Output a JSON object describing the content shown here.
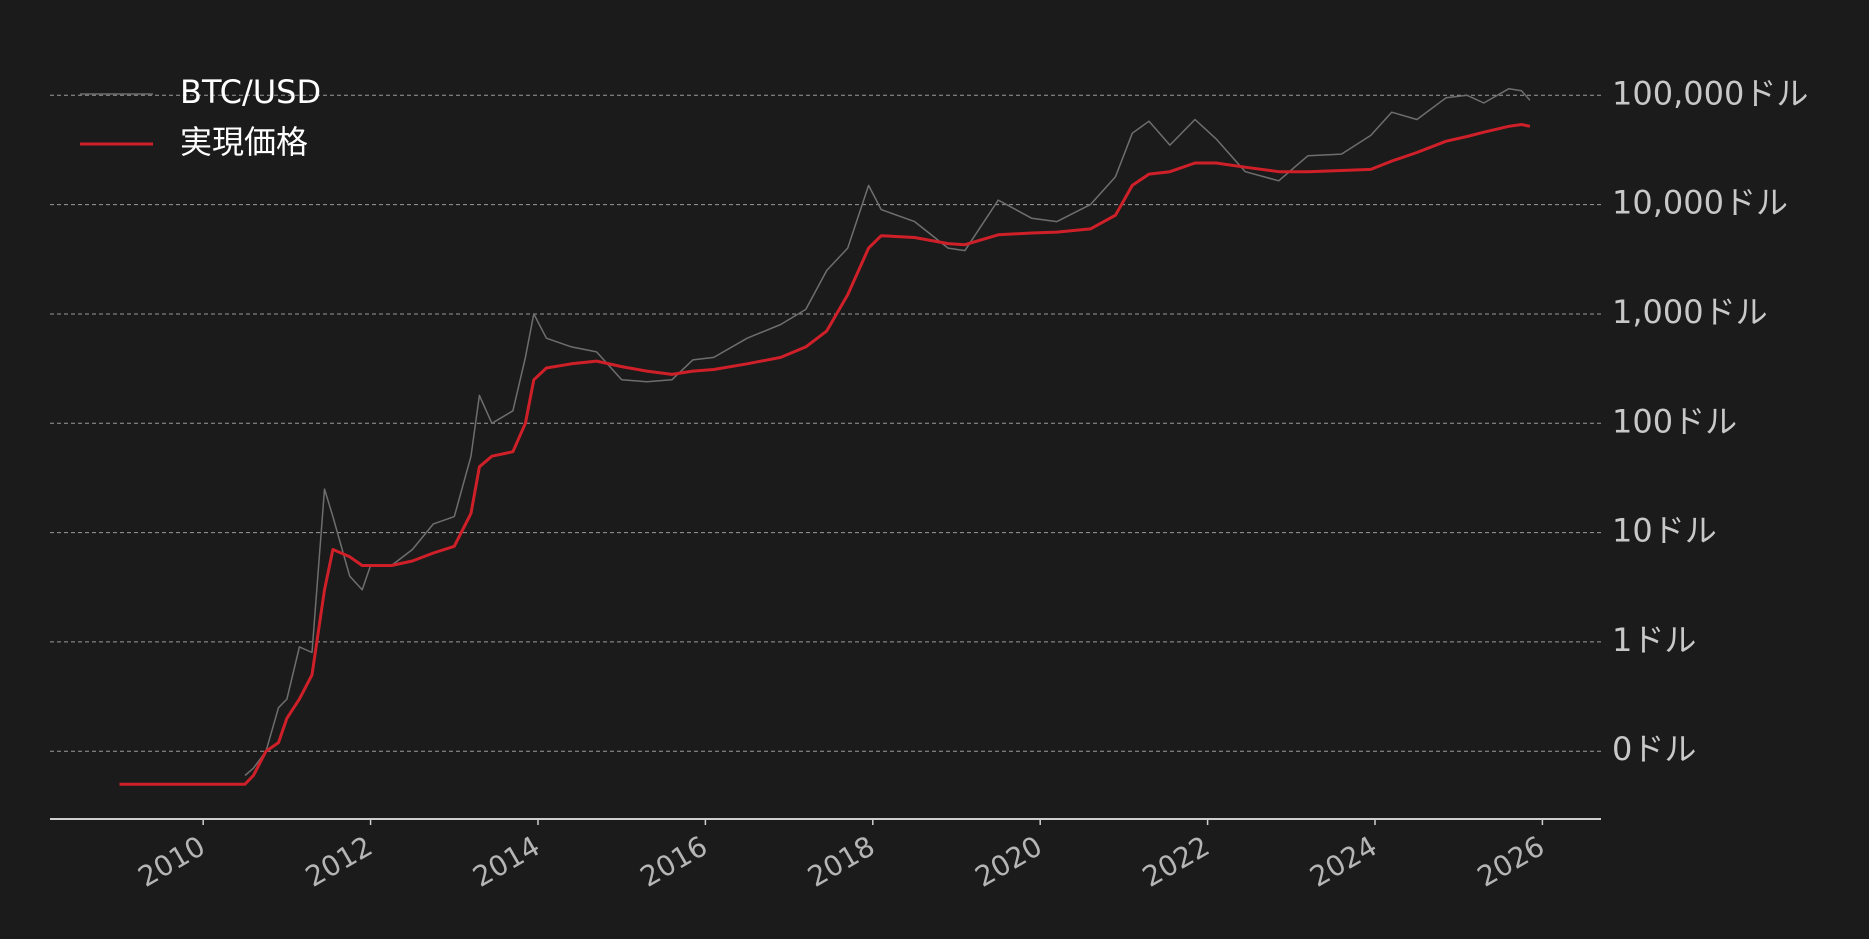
{
  "chart_data": {
    "type": "line",
    "x": [
      2009.0,
      2009.5,
      2010.0,
      2010.5,
      2010.6,
      2010.75,
      2010.9,
      2011.0,
      2011.15,
      2011.3,
      2011.45,
      2011.55,
      2011.75,
      2011.9,
      2012.0,
      2012.25,
      2012.5,
      2012.75,
      2013.0,
      2013.2,
      2013.3,
      2013.45,
      2013.7,
      2013.85,
      2013.95,
      2014.1,
      2014.4,
      2014.7,
      2015.0,
      2015.3,
      2015.6,
      2015.85,
      2016.1,
      2016.5,
      2016.9,
      2017.2,
      2017.45,
      2017.7,
      2017.95,
      2018.1,
      2018.5,
      2018.9,
      2019.1,
      2019.5,
      2019.9,
      2020.2,
      2020.6,
      2020.9,
      2021.1,
      2021.3,
      2021.55,
      2021.85,
      2022.1,
      2022.45,
      2022.85,
      2023.2,
      2023.6,
      2023.95,
      2024.2,
      2024.5,
      2024.85,
      2025.1,
      2025.3,
      2025.6,
      2025.75,
      2025.85
    ],
    "series": [
      {
        "name": "BTC/USD",
        "color": "#6e6e6e",
        "values": [
          null,
          null,
          null,
          0.06,
          0.07,
          0.1,
          0.25,
          0.3,
          0.9,
          0.8,
          25,
          14,
          4,
          3,
          5,
          5,
          7,
          12,
          14,
          50,
          180,
          100,
          130,
          400,
          1000,
          600,
          500,
          450,
          250,
          240,
          250,
          380,
          400,
          600,
          800,
          1100,
          2500,
          4000,
          15000,
          9000,
          7000,
          4000,
          3800,
          11000,
          7500,
          7000,
          10000,
          18000,
          45000,
          58000,
          35000,
          60000,
          40000,
          20000,
          16500,
          28000,
          29000,
          43000,
          70000,
          60000,
          95000,
          100000,
          85000,
          115000,
          110000,
          90000
        ]
      },
      {
        "name": "実現価格",
        "color": "#cf2029",
        "values": [
          0.05,
          0.05,
          0.05,
          0.05,
          0.06,
          0.1,
          0.12,
          0.2,
          0.3,
          0.5,
          3,
          7,
          6,
          5,
          5,
          5,
          5.5,
          6.5,
          7.5,
          15,
          40,
          50,
          55,
          100,
          250,
          320,
          350,
          370,
          330,
          300,
          280,
          300,
          310,
          350,
          400,
          500,
          700,
          1500,
          4000,
          5200,
          5000,
          4400,
          4300,
          5300,
          5500,
          5600,
          6000,
          8000,
          15000,
          19000,
          20000,
          24000,
          24000,
          22000,
          20000,
          20000,
          20500,
          21000,
          25000,
          30000,
          38000,
          42000,
          46000,
          52000,
          54000,
          52000
        ]
      }
    ],
    "xlim": [
      2008.17,
      2026.7
    ],
    "xticks": [
      2010,
      2012,
      2014,
      2016,
      2018,
      2020,
      2022,
      2024,
      2026
    ],
    "ylim": [
      0.024,
      224000
    ],
    "log_y": true,
    "yticks": [
      {
        "value": 0.1,
        "label": "0ドル"
      },
      {
        "value": 1,
        "label": "1ドル"
      },
      {
        "value": 10,
        "label": "10ドル"
      },
      {
        "value": 100,
        "label": "100ドル"
      },
      {
        "value": 1000,
        "label": "1,000ドル"
      },
      {
        "value": 10000,
        "label": "10,000ドル"
      },
      {
        "value": 100000,
        "label": "100,000ドル"
      }
    ],
    "grid": true,
    "legend": "upper left"
  }
}
